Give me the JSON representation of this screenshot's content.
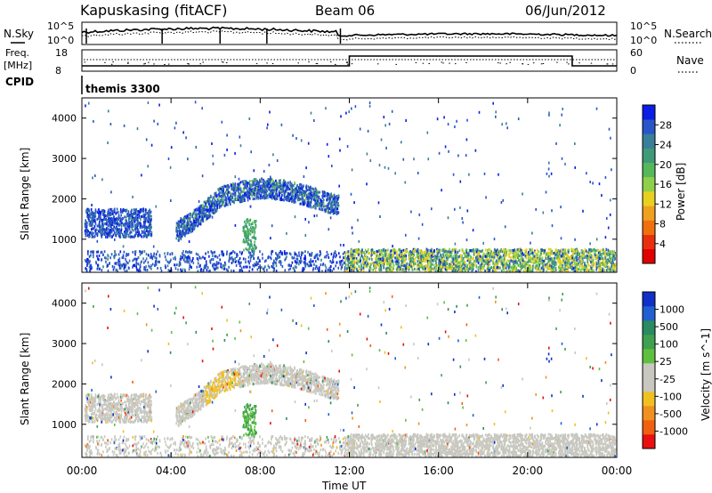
{
  "header": {
    "station": "Kapuskasing (fitACF)",
    "beam": "Beam 06",
    "date": "06/Jun/2012"
  },
  "top_panels": {
    "nsky_label": "N.Sky",
    "nsky_ticks": [
      "10^5",
      "10^0"
    ],
    "nsearch_label": "N.Search",
    "nsearch_ticks": [
      "10^5",
      "10^0"
    ],
    "freq_label_1": "Freq.",
    "freq_label_2": "[MHz]",
    "freq_ticks": [
      "18",
      "8"
    ],
    "nave_label": "Nave",
    "nave_ticks": [
      "60",
      "0"
    ],
    "cpid_label": "CPID",
    "cpid_value": "themis 3300"
  },
  "chart_data": [
    {
      "type": "heatmap",
      "name": "power",
      "ylabel": "Slant Range [km]",
      "ylim": [
        180,
        4500
      ],
      "yticks": [
        "1000",
        "2000",
        "3000",
        "4000"
      ],
      "colorbar_label": "Power [dB]",
      "colorbar_ticks": [
        "28",
        "24",
        "20",
        "16",
        "12",
        "8",
        "4"
      ],
      "colorbar_colors": [
        "#0a1ee6",
        "#2a55c8",
        "#3a7f9a",
        "#3f9a7a",
        "#56b85a",
        "#8fd04a",
        "#e8d020",
        "#f0a020",
        "#f07010",
        "#e83010",
        "#e00000"
      ]
    },
    {
      "type": "heatmap",
      "name": "velocity",
      "ylabel": "Slant Range [km]",
      "ylim": [
        180,
        4500
      ],
      "yticks": [
        "1000",
        "2000",
        "3000",
        "4000"
      ],
      "colorbar_label": "Velocity [m s^-1]",
      "colorbar_ticks": [
        "1000",
        "500",
        "100",
        "25",
        "-25",
        "-100",
        "-500",
        "-1000"
      ],
      "colorbar_colors": [
        "#1030c8",
        "#2060d0",
        "#2a8a60",
        "#3fa050",
        "#5fc040",
        "#c8c8c0",
        "#c8c8c0",
        "#f0c020",
        "#f09020",
        "#f06010",
        "#e81010"
      ]
    }
  ],
  "x_axis": {
    "ticks": [
      "00:00",
      "04:00",
      "08:00",
      "12:00",
      "16:00",
      "20:00",
      "00:00"
    ],
    "xlabel": "Time UT"
  }
}
